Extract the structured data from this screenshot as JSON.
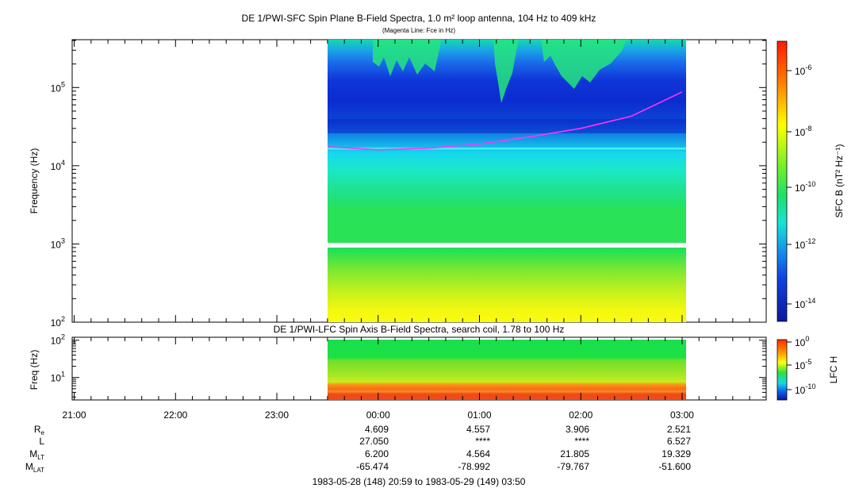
{
  "top_panel": {
    "title": "DE 1/PWI-SFC  Spin Plane B-Field Spectra, 1.0 m² loop antenna, 104 Hz to 409 kHz",
    "subtitle": "(Magenta Line: Fce in Hz)",
    "ylabel": "Frequency (Hz)",
    "colorbar_label": "SFC B (nT² Hz⁻¹)",
    "colorbar_ticks": [
      {
        "exp": "-6"
      },
      {
        "exp": "-8"
      },
      {
        "exp": "-10"
      },
      {
        "exp": "-12"
      },
      {
        "exp": "-14"
      }
    ]
  },
  "bottom_panel": {
    "title": "DE 1/PWI-LFC  Spin Axis B-Field Spectra, search coil, 1.78 to 100 Hz",
    "ylabel": "Freq (Hz)",
    "colorbar_label": "LFC H",
    "colorbar_ticks": [
      {
        "base": "10",
        "exp": "0"
      },
      {
        "base": "10",
        "exp": "-5"
      },
      {
        "base": "10",
        "exp": "-10"
      }
    ]
  },
  "ephemeris": {
    "row_labels": [
      {
        "main": "R",
        "sub": "e"
      },
      {
        "main": "L",
        "sub": ""
      },
      {
        "main": "M",
        "sub": "LT"
      },
      {
        "main": "M",
        "sub": "LAT"
      }
    ],
    "columns": [
      {
        "re": "4.609",
        "l": "27.050",
        "mlt": "6.200",
        "mlat": "-65.474"
      },
      {
        "re": "4.557",
        "l": "****",
        "mlt": "4.564",
        "mlat": "-78.992"
      },
      {
        "re": "3.906",
        "l": "****",
        "mlt": "21.805",
        "mlat": "-79.767"
      },
      {
        "re": "2.521",
        "l": "6.527",
        "mlt": "19.329",
        "mlat": "-51.600"
      }
    ]
  },
  "time_range_label": "1983-05-28 (148) 20:59 to 1983-05-29 (149) 03:50",
  "chart_data": [
    {
      "type": "heatmap",
      "title": "DE 1/PWI-SFC  Spin Plane B-Field Spectra, 1.0 m² loop antenna, 104 Hz to 409 kHz",
      "subtitle": "(Magenta Line: Fce in Hz)",
      "ylabel": "Frequency (Hz)",
      "y_scale": "log",
      "ylim": [
        100,
        409000
      ],
      "y_ticks": [
        {
          "base": "10",
          "exp": "2"
        },
        {
          "base": "10",
          "exp": "3"
        },
        {
          "base": "10",
          "exp": "4"
        },
        {
          "base": "10",
          "exp": "5"
        }
      ],
      "x_ticks": [
        "21:00",
        "22:00",
        "23:00",
        "00:00",
        "01:00",
        "02:00",
        "03:00"
      ],
      "xlim_hours": [
        20.98,
        27.83
      ],
      "data_coverage_hours": [
        23.5,
        27.05
      ],
      "data_gap_hz": [
        900,
        1050
      ],
      "colorbar": {
        "label": "SFC B (nT² Hz⁻¹)",
        "scale": "log",
        "range": [
          1e-15,
          1e-05
        ]
      },
      "grid": false,
      "fce_line": {
        "name": "Fce in Hz",
        "color": "#ff33ff",
        "points": [
          {
            "t": 23.5,
            "f": 17500
          },
          {
            "t": 24.0,
            "f": 16000
          },
          {
            "t": 24.5,
            "f": 16800
          },
          {
            "t": 25.0,
            "f": 19000
          },
          {
            "t": 25.5,
            "f": 23500
          },
          {
            "t": 26.0,
            "f": 30000
          },
          {
            "t": 26.5,
            "f": 43000
          },
          {
            "t": 27.0,
            "f": 88000
          }
        ]
      }
    },
    {
      "type": "heatmap",
      "title": "DE 1/PWI-LFC  Spin Axis B-Field Spectra, search coil, 1.78 to 100 Hz",
      "ylabel": "Freq (Hz)",
      "y_scale": "log",
      "ylim": [
        2.5,
        120
      ],
      "y_ticks": [
        {
          "base": "10",
          "exp": "1"
        },
        {
          "base": "10",
          "exp": "2"
        }
      ],
      "data_coverage_hours": [
        23.5,
        27.05
      ],
      "colorbar": {
        "label": "LFC H",
        "scale": "log",
        "range": [
          1e-12,
          1
        ]
      },
      "grid": false
    }
  ],
  "colors": {
    "fce_line": "#ff33ff",
    "cyan_band": "#40f0f0"
  }
}
